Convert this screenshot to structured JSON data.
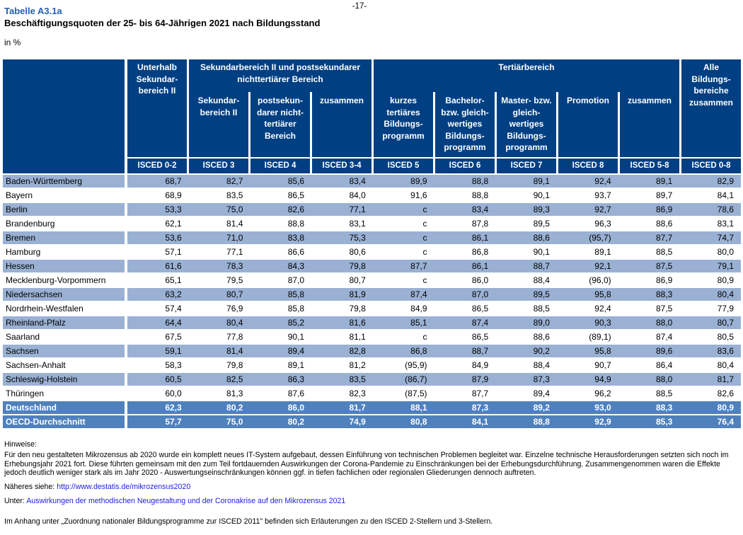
{
  "page": {
    "number": "-17-"
  },
  "header": {
    "table_label": "Tabelle A3.1a",
    "title": "Beschäftigungsquoten der 25- bis 64-Jährigen 2021 nach Bildungsstand",
    "unit": "in %"
  },
  "table": {
    "group_headers": {
      "below_secondary": "Unterhalb\nSekundar-\nbereich II",
      "secondary_group": "Sekundarbereich II und postsekundarer\nnichttertiärer Bereich",
      "tertiary_group": "Tertiärbereich",
      "all_levels": "Alle\nBildungs-\nbereiche\nzusammen"
    },
    "sub_headers": {
      "secondary": "Sekundar-\nbereich II",
      "post_secondary": "postsekun-\ndarer nicht-\ntertiärer\nBereich",
      "secondary_total": "zusammen",
      "short_tertiary": "kurzes\ntertiäres\nBildungs-\nprogramm",
      "bachelor": "Bachelor-\nbzw. gleich-\nwertiges\nBildungs-\nprogramm",
      "master": "Master- bzw.\ngleich-\nwertiges\nBildungs-\nprogramm",
      "promotion": "Promotion",
      "tertiary_total": "zusammen"
    },
    "isced_codes": [
      "ISCED 0-2",
      "ISCED 3",
      "ISCED 4",
      "ISCED 3-4",
      "ISCED 5",
      "ISCED 6",
      "ISCED 7",
      "ISCED 8",
      "ISCED 5-8",
      "ISCED 0-8"
    ],
    "rows": [
      {
        "label": "Baden-Württemberg",
        "style": "odd",
        "values": [
          "68,7",
          "82,7",
          "85,6",
          "83,4",
          "89,9",
          "88,8",
          "89,1",
          "92,4",
          "89,1",
          "82,9"
        ]
      },
      {
        "label": "Bayern",
        "style": "even",
        "values": [
          "68,9",
          "83,5",
          "86,5",
          "84,0",
          "91,6",
          "88,8",
          "90,1",
          "93,7",
          "89,7",
          "84,1"
        ]
      },
      {
        "label": "Berlin",
        "style": "odd",
        "values": [
          "53,3",
          "75,0",
          "82,6",
          "77,1",
          "c",
          "83,4",
          "89,3",
          "92,7",
          "86,9",
          "78,6"
        ]
      },
      {
        "label": "Brandenburg",
        "style": "even",
        "values": [
          "62,1",
          "81,4",
          "88,8",
          "83,1",
          "c",
          "87,8",
          "89,5",
          "96,3",
          "88,6",
          "83,1"
        ]
      },
      {
        "label": "Bremen",
        "style": "odd",
        "values": [
          "53,6",
          "71,0",
          "83,8",
          "75,3",
          "c",
          "86,1",
          "88,6",
          "(95,7)",
          "87,7",
          "74,7"
        ]
      },
      {
        "label": "Hamburg",
        "style": "even",
        "values": [
          "57,1",
          "77,1",
          "86,6",
          "80,6",
          "c",
          "86,8",
          "90,1",
          "89,1",
          "88,5",
          "80,0"
        ]
      },
      {
        "label": "Hessen",
        "style": "odd",
        "values": [
          "61,6",
          "78,3",
          "84,3",
          "79,8",
          "87,7",
          "86,1",
          "88,7",
          "92,1",
          "87,5",
          "79,1"
        ]
      },
      {
        "label": "Mecklenburg-Vorpommern",
        "style": "even",
        "values": [
          "65,1",
          "79,5",
          "87,0",
          "80,7",
          "c",
          "86,0",
          "88,4",
          "(96,0)",
          "86,9",
          "80,9"
        ]
      },
      {
        "label": "Niedersachsen",
        "style": "odd",
        "values": [
          "63,2",
          "80,7",
          "85,8",
          "81,9",
          "87,4",
          "87,0",
          "89,5",
          "95,8",
          "88,3",
          "80,4"
        ]
      },
      {
        "label": "Nordrhein-Westfalen",
        "style": "even",
        "values": [
          "57,4",
          "76,9",
          "85,8",
          "79,8",
          "84,9",
          "86,5",
          "88,5",
          "92,4",
          "87,5",
          "77,9"
        ]
      },
      {
        "label": "Rheinland-Pfalz",
        "style": "odd",
        "values": [
          "64,4",
          "80,4",
          "85,2",
          "81,6",
          "85,1",
          "87,4",
          "89,0",
          "90,3",
          "88,0",
          "80,7"
        ]
      },
      {
        "label": "Saarland",
        "style": "even",
        "values": [
          "67,5",
          "77,8",
          "90,1",
          "81,1",
          "c",
          "86,5",
          "88,6",
          "(89,1)",
          "87,4",
          "80,5"
        ]
      },
      {
        "label": "Sachsen",
        "style": "odd",
        "values": [
          "59,1",
          "81,4",
          "89,4",
          "82,8",
          "86,8",
          "88,7",
          "90,2",
          "95,8",
          "89,6",
          "83,6"
        ]
      },
      {
        "label": "Sachsen-Anhalt",
        "style": "even",
        "values": [
          "58,3",
          "79,8",
          "89,1",
          "81,2",
          "(95,9)",
          "84,9",
          "88,4",
          "90,7",
          "86,4",
          "80,4"
        ]
      },
      {
        "label": "Schleswig-Holstein",
        "style": "odd",
        "values": [
          "60,5",
          "82,5",
          "86,3",
          "83,5",
          "(86,7)",
          "87,9",
          "87,3",
          "94,9",
          "88,0",
          "81,7"
        ]
      },
      {
        "label": "Thüringen",
        "style": "even",
        "values": [
          "60,0",
          "81,3",
          "87,6",
          "82,3",
          "(87,5)",
          "87,7",
          "89,4",
          "96,2",
          "88,5",
          "82,6"
        ]
      },
      {
        "label": "Deutschland",
        "style": "total",
        "values": [
          "62,3",
          "80,2",
          "86,0",
          "81,7",
          "88,1",
          "87,3",
          "89,2",
          "93,0",
          "88,3",
          "80,9"
        ]
      },
      {
        "label": "OECD-Durchschnitt",
        "style": "total",
        "values": [
          "57,7",
          "75,0",
          "80,2",
          "74,9",
          "80,8",
          "84,1",
          "88,8",
          "92,9",
          "85,3",
          "76,4"
        ]
      }
    ]
  },
  "footer": {
    "hinweise_label": "Hinweise:",
    "note": "Für den neu gestalteten Mikrozensus ab 2020 wurde ein komplett neues IT-System aufgebaut, dessen Einführung von technischen Problemen begleitet war. Einzelne technische Herausforderungen setzten sich noch im Erhebungsjahr 2021 fort. Diese führten gemeinsam mit den zum Teil fortdauernden Auswirkungen der Corona-Pandemie zu Einschränkungen bei der Erhebungsdurchführung. Zusammengenommen waren die Effekte jedoch deutlich weniger stark als im Jahr 2020 - Auswertungseinschränkungen können ggf. in tiefen fachlichen oder regionalen Gliederungen dennoch auftreten.",
    "naeheres_prefix": "Näheres siehe: ",
    "naeheres_link": "http://www.destatis.de/mikrozensus2020",
    "unter_prefix": "Unter: ",
    "unter_link": "Auswirkungen der methodischen Neugestaltung und der Coronakrise auf den Mikrozensus 2021",
    "anhang_note": "Im Anhang unter „Zuordnung nationaler Bildungsprogramme zur ISCED 2011\" befinden sich Erläuterungen zu den ISCED 2-Stellern und 3-Stellern."
  },
  "colors": {
    "header_navy": "#003f82",
    "row_stripe": "#9ab1d4",
    "total_row_blue": "#4f81bd",
    "title_blue": "#2060b0",
    "link_blue": "#2222e0"
  }
}
